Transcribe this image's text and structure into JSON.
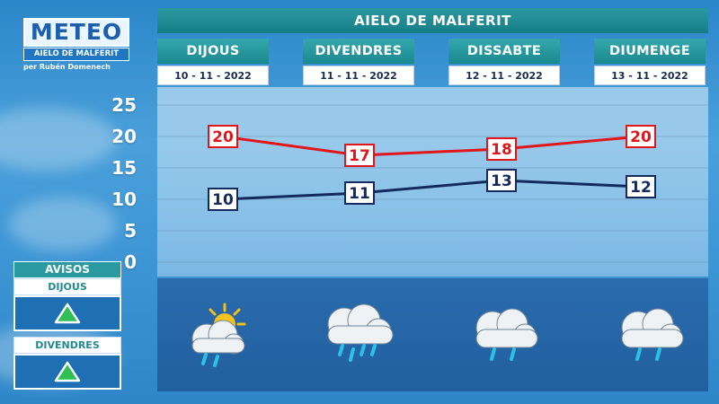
{
  "logo": {
    "title": "METEO",
    "subtitle": "AIELO DE MALFERIT",
    "author": "per Rubén Domenech"
  },
  "header": {
    "title": "AIELO DE MALFERIT"
  },
  "days": [
    {
      "name": "DIJOUS",
      "date": "10 - 11 - 2022",
      "icon": "sun-cloud-rain-icon"
    },
    {
      "name": "DIVENDRES",
      "date": "11 - 11 - 2022",
      "icon": "heavy-rain-icon"
    },
    {
      "name": "DISSABTE",
      "date": "12 - 11 - 2022",
      "icon": "rain-icon"
    },
    {
      "name": "DIUMENGE",
      "date": "13 - 11 - 2022",
      "icon": "rain-icon"
    }
  ],
  "avisos": {
    "title": "AVISOS",
    "items": [
      {
        "day": "DIJOUS",
        "level": "green",
        "icon": "triangle-warning-icon"
      },
      {
        "day": "DIVENDRES",
        "level": "green",
        "icon": "triangle-warning-icon"
      }
    ]
  },
  "colors": {
    "max": "#e0161b",
    "min": "#142a5e",
    "warning_green": "#2fbf54"
  },
  "chart_data": {
    "type": "line",
    "categories": [
      "DIJOUS",
      "DIVENDRES",
      "DISSABTE",
      "DIUMENGE"
    ],
    "series": [
      {
        "values": [
          20,
          17,
          18,
          20
        ],
        "color": "#e0161b"
      },
      {
        "values": [
          10,
          11,
          13,
          12
        ],
        "color": "#142a5e"
      }
    ],
    "yticks": [
      "25",
      "20",
      "15",
      "10",
      "5",
      "0"
    ],
    "ylim": [
      0,
      25
    ],
    "grid": true
  }
}
